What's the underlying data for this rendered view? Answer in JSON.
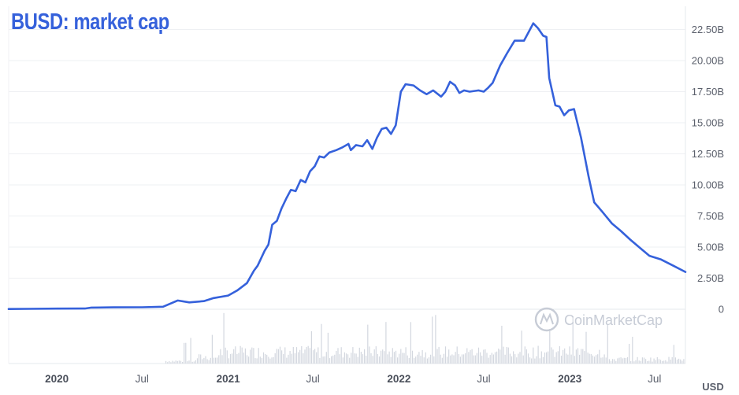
{
  "title": "BUSD: market cap",
  "currency_label": "USD",
  "watermark": "CoinMarketCap",
  "colors": {
    "line": "#3561db",
    "volume": "#d3d7df",
    "grid": "#eef0f3",
    "axis_text": "#5a5f6b",
    "title": "#3561db"
  },
  "chart_data": {
    "type": "line",
    "title": "BUSD: market cap",
    "ylabel": "USD",
    "ylim": [
      0,
      25
    ],
    "y_unit": "billion USD",
    "y_ticks": [
      "22.50B",
      "20.00B",
      "17.50B",
      "15.00B",
      "12.50B",
      "10.00B",
      "7.50B",
      "5.00B",
      "2.50B",
      "0"
    ],
    "y_tick_values": [
      22.5,
      20,
      17.5,
      15,
      12.5,
      10,
      7.5,
      5,
      2.5,
      0
    ],
    "x_ticks": [
      "2020",
      "Jul",
      "2021",
      "Jul",
      "2022",
      "Jul",
      "2023",
      "Jul"
    ],
    "x_tick_dates": [
      "2020-01-01",
      "2020-07-01",
      "2021-01-01",
      "2021-07-01",
      "2022-01-01",
      "2022-07-01",
      "2023-01-01",
      "2023-07-01"
    ],
    "x_tick_bold": [
      true,
      false,
      true,
      false,
      true,
      false,
      true,
      false
    ],
    "series": [
      {
        "points": [
          [
            "2019-09-20",
            0.02
          ],
          [
            "2019-11-01",
            0.03
          ],
          [
            "2020-01-01",
            0.05
          ],
          [
            "2020-03-01",
            0.06
          ],
          [
            "2020-03-15",
            0.13
          ],
          [
            "2020-05-01",
            0.15
          ],
          [
            "2020-07-01",
            0.16
          ],
          [
            "2020-08-15",
            0.2
          ],
          [
            "2020-09-15",
            0.7
          ],
          [
            "2020-10-10",
            0.55
          ],
          [
            "2020-11-10",
            0.65
          ],
          [
            "2020-12-01",
            0.9
          ],
          [
            "2021-01-01",
            1.1
          ],
          [
            "2021-01-20",
            1.5
          ],
          [
            "2021-02-10",
            2.1
          ],
          [
            "2021-02-25",
            3.1
          ],
          [
            "2021-03-05",
            3.5
          ],
          [
            "2021-03-20",
            4.7
          ],
          [
            "2021-03-28",
            5.2
          ],
          [
            "2021-04-05",
            6.8
          ],
          [
            "2021-04-15",
            7.1
          ],
          [
            "2021-04-25",
            8.1
          ],
          [
            "2021-05-05",
            8.9
          ],
          [
            "2021-05-15",
            9.6
          ],
          [
            "2021-05-25",
            9.5
          ],
          [
            "2021-06-05",
            10.4
          ],
          [
            "2021-06-15",
            10.2
          ],
          [
            "2021-06-25",
            11.1
          ],
          [
            "2021-07-05",
            11.5
          ],
          [
            "2021-07-15",
            12.3
          ],
          [
            "2021-07-25",
            12.2
          ],
          [
            "2021-08-05",
            12.6
          ],
          [
            "2021-08-20",
            12.8
          ],
          [
            "2021-09-01",
            13.0
          ],
          [
            "2021-09-15",
            13.3
          ],
          [
            "2021-09-20",
            12.8
          ],
          [
            "2021-10-01",
            13.2
          ],
          [
            "2021-10-15",
            13.1
          ],
          [
            "2021-10-25",
            13.6
          ],
          [
            "2021-11-05",
            12.9
          ],
          [
            "2021-11-15",
            13.8
          ],
          [
            "2021-11-25",
            14.5
          ],
          [
            "2021-12-05",
            14.6
          ],
          [
            "2021-12-15",
            14.1
          ],
          [
            "2021-12-25",
            14.8
          ],
          [
            "2022-01-05",
            17.5
          ],
          [
            "2022-01-15",
            18.1
          ],
          [
            "2022-02-01",
            18.0
          ],
          [
            "2022-02-15",
            17.6
          ],
          [
            "2022-03-01",
            17.3
          ],
          [
            "2022-03-15",
            17.6
          ],
          [
            "2022-04-01",
            17.1
          ],
          [
            "2022-04-10",
            17.5
          ],
          [
            "2022-04-20",
            18.3
          ],
          [
            "2022-05-01",
            18.0
          ],
          [
            "2022-05-10",
            17.4
          ],
          [
            "2022-05-20",
            17.6
          ],
          [
            "2022-06-01",
            17.5
          ],
          [
            "2022-06-20",
            17.6
          ],
          [
            "2022-07-01",
            17.5
          ],
          [
            "2022-07-10",
            17.8
          ],
          [
            "2022-07-20",
            18.2
          ],
          [
            "2022-08-05",
            19.6
          ],
          [
            "2022-08-20",
            20.6
          ],
          [
            "2022-09-05",
            21.6
          ],
          [
            "2022-09-25",
            21.6
          ],
          [
            "2022-10-05",
            22.3
          ],
          [
            "2022-10-15",
            23.0
          ],
          [
            "2022-10-25",
            22.6
          ],
          [
            "2022-11-05",
            22.0
          ],
          [
            "2022-11-12",
            21.9
          ],
          [
            "2022-11-18",
            18.6
          ],
          [
            "2022-12-01",
            16.4
          ],
          [
            "2022-12-10",
            16.3
          ],
          [
            "2022-12-20",
            15.6
          ],
          [
            "2022-12-30",
            16.0
          ],
          [
            "2023-01-10",
            16.1
          ],
          [
            "2023-01-25",
            13.8
          ],
          [
            "2023-02-10",
            10.7
          ],
          [
            "2023-02-22",
            8.6
          ],
          [
            "2023-03-10",
            7.9
          ],
          [
            "2023-04-01",
            6.9
          ],
          [
            "2023-04-20",
            6.3
          ],
          [
            "2023-05-10",
            5.6
          ],
          [
            "2023-06-01",
            4.9
          ],
          [
            "2023-06-20",
            4.3
          ],
          [
            "2023-07-15",
            4.0
          ],
          [
            "2023-08-10",
            3.5
          ],
          [
            "2023-09-05",
            3.0
          ]
        ]
      }
    ]
  }
}
